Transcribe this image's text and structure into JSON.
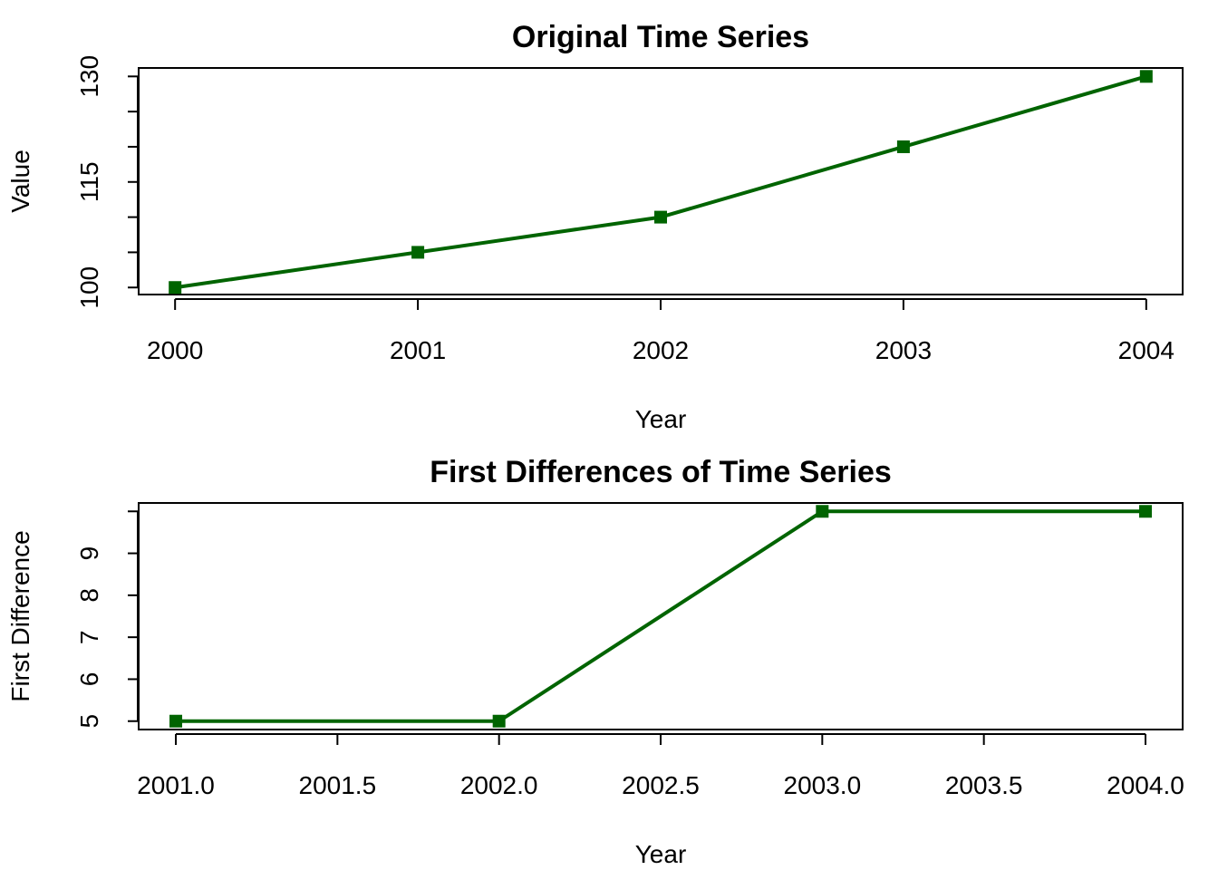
{
  "chart_data": [
    {
      "type": "line",
      "title": "Original Time Series",
      "xlabel": "Year",
      "ylabel": "Value",
      "x": [
        2000,
        2001,
        2002,
        2003,
        2004
      ],
      "series": [
        {
          "values": [
            100,
            105,
            110,
            120,
            130
          ]
        }
      ],
      "xticks": [
        "2000",
        "2001",
        "2002",
        "2003",
        "2004"
      ],
      "yticks": [
        "100",
        "115",
        "130"
      ],
      "xlim": [
        1999.85,
        2004.15
      ],
      "ylim": [
        99,
        131.2
      ],
      "y_minor_ticks": [
        105,
        110,
        120,
        125
      ],
      "line_color": "#006400",
      "marker": "square",
      "grid": false
    },
    {
      "type": "line",
      "title": "First Differences of Time Series",
      "xlabel": "Year",
      "ylabel": "First Difference",
      "x": [
        2001,
        2002,
        2003,
        2004
      ],
      "series": [
        {
          "values": [
            5,
            5,
            10,
            10
          ]
        }
      ],
      "xticks": [
        "2001.0",
        "2001.5",
        "2002.0",
        "2002.5",
        "2003.0",
        "2003.5",
        "2004.0"
      ],
      "yticks": [
        "5",
        "6",
        "7",
        "8",
        "9"
      ],
      "xlim": [
        2000.885,
        2004.115
      ],
      "ylim": [
        4.8,
        10.2
      ],
      "y_minor_ticks": [
        10
      ],
      "line_color": "#006400",
      "marker": "square",
      "grid": false
    }
  ]
}
